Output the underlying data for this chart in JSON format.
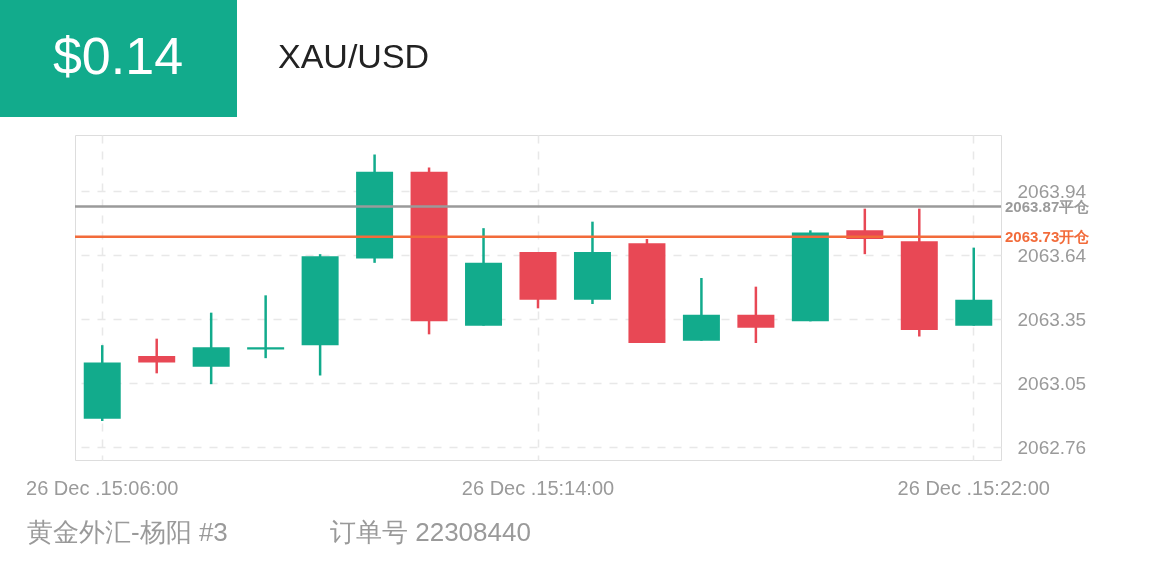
{
  "chart_data": {
    "type": "candlestick",
    "title": "XAU/USD",
    "categories": [
      "26 Dec .15:06:00",
      null,
      null,
      null,
      null,
      null,
      null,
      null,
      "26 Dec .15:14:00",
      null,
      null,
      null,
      null,
      null,
      null,
      null,
      "26 Dec .15:22:00"
    ],
    "ohlc": [
      [
        2062.89,
        2063.23,
        2062.88,
        2063.15
      ],
      [
        2063.18,
        2063.26,
        2063.1,
        2063.15
      ],
      [
        2063.13,
        2063.38,
        2063.05,
        2063.22
      ],
      [
        2063.21,
        2063.46,
        2063.17,
        2063.22
      ],
      [
        2063.23,
        2063.65,
        2063.09,
        2063.64
      ],
      [
        2063.63,
        2064.11,
        2063.61,
        2064.03
      ],
      [
        2064.03,
        2064.05,
        2063.28,
        2063.34
      ],
      [
        2063.32,
        2063.77,
        2063.32,
        2063.61
      ],
      [
        2063.66,
        2063.66,
        2063.4,
        2063.44
      ],
      [
        2063.44,
        2063.8,
        2063.42,
        2063.66
      ],
      [
        2063.7,
        2063.72,
        2063.24,
        2063.24
      ],
      [
        2063.25,
        2063.54,
        2063.25,
        2063.37
      ],
      [
        2063.37,
        2063.5,
        2063.24,
        2063.31
      ],
      [
        2063.34,
        2063.76,
        2063.34,
        2063.75
      ],
      [
        2063.76,
        2063.86,
        2063.65,
        2063.72
      ],
      [
        2063.71,
        2063.86,
        2063.27,
        2063.3
      ],
      [
        2063.32,
        2063.68,
        2063.32,
        2063.44
      ]
    ],
    "colors": [
      "#12ab8c",
      "#e84855",
      "#12ab8c",
      "#12ab8c",
      "#12ab8c",
      "#12ab8c",
      "#e84855",
      "#12ab8c",
      "#e84855",
      "#12ab8c",
      "#e84855",
      "#12ab8c",
      "#e84855",
      "#12ab8c",
      "#e84855",
      "#e84855",
      "#12ab8c"
    ],
    "ylim": [
      2062.7,
      2064.2
    ],
    "yticks": [
      2062.76,
      {
        "value": 2063.055,
        "label": "2063.05"
      },
      2063.35,
      {
        "value": 2063.645,
        "label": "2063.64"
      },
      2063.94
    ],
    "ref_lines": [
      {
        "axis": "y",
        "value": 2063.87,
        "label": "2063.87平仓",
        "color": "#9a9a9a"
      },
      {
        "axis": "y",
        "value": 2063.73,
        "label": "2063.73开仓",
        "color": "#f26b3a"
      }
    ],
    "grid": true,
    "annotations": [
      "$0.14",
      "黄金外汇-杨阳 #3",
      "订单号 22308440"
    ]
  }
}
